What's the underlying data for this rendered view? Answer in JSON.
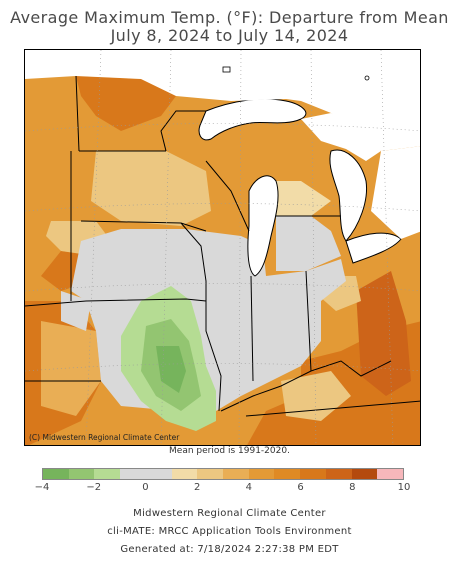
{
  "title": {
    "line1": "Average Maximum Temp. (°F): Departure from Mean",
    "line2": "July 8, 2024 to July 14, 2024"
  },
  "map": {
    "credit": "(C) Midwestern Regional Climate Center",
    "mean_period": "Mean period is 1991-2020.",
    "region": "Midwest United States",
    "colors": {
      "dark_orange": "#d2691e",
      "orange": "#e0922e",
      "light_orange": "#edb563",
      "tan": "#ecc781",
      "pale_tan": "#efd6a5",
      "gray": "#d9d9d9",
      "light_green": "#b5dc93",
      "green": "#93c571",
      "dark_green": "#76b45c",
      "water": "#ffffff"
    }
  },
  "legend": {
    "colors": [
      "#76b45c",
      "#93c571",
      "#b5dc93",
      "#d9d9d9",
      "#d9d9d9",
      "#f2dca8",
      "#ecc781",
      "#e9ae55",
      "#e39a36",
      "#df8a24",
      "#d8781b",
      "#cd6419",
      "#b44a0e",
      "#f7b7bb"
    ],
    "ticks": [
      "−4",
      "−2",
      "0",
      "2",
      "4",
      "6",
      "8",
      "10"
    ],
    "min": -4,
    "max": 10,
    "step": 1
  },
  "footer": {
    "line1": "Midwestern Regional Climate Center",
    "line2": "cli-MATE: MRCC Application Tools Environment",
    "line3": "Generated at: 7/18/2024 2:27:38 PM EDT"
  }
}
